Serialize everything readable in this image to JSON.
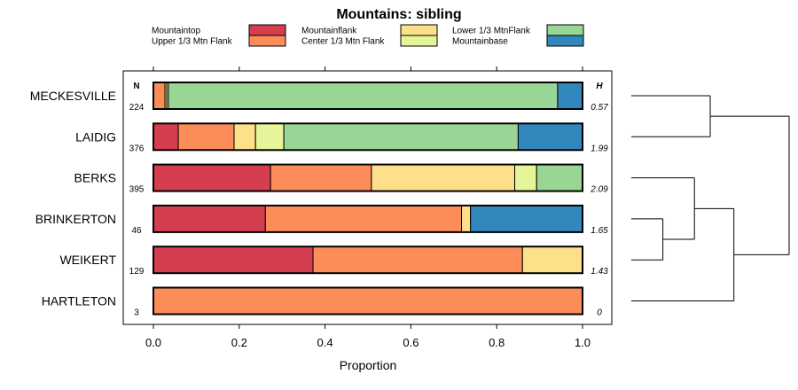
{
  "chart_data": {
    "type": "bar",
    "stacked": true,
    "horizontal": true,
    "title": "Mountains: sibling",
    "xlabel": "Proportion",
    "xlim": [
      0,
      1
    ],
    "xticks": [
      "0.0",
      "0.2",
      "0.4",
      "0.6",
      "0.8",
      "1.0"
    ],
    "n_header": "N",
    "h_header": "H",
    "legend": [
      {
        "name": "Mountaintop",
        "color": "#d53e4f"
      },
      {
        "name": "Upper 1/3 Mtn Flank",
        "color": "#fc8d59"
      },
      {
        "name": "Mountainflank",
        "color": "#fee08b"
      },
      {
        "name": "Center 1/3 Mtn Flank",
        "color": "#e6f598"
      },
      {
        "name": "Lower 1/3 MtnFlank",
        "color": "#99d594"
      },
      {
        "name": "Mountainbase",
        "color": "#3288bd"
      }
    ],
    "categories": [
      "MECKESVILLE",
      "LAIDIG",
      "BERKS",
      "BRINKERTON",
      "WEIKERT",
      "HARTLETON"
    ],
    "n": [
      "224",
      "376",
      "395",
      "46",
      "129",
      "3"
    ],
    "h": [
      "0.57",
      "1.99",
      "2.09",
      "1.65",
      "1.43",
      "0"
    ],
    "series": [
      {
        "name": "Mountaintop",
        "values": [
          0.0,
          0.058,
          0.273,
          0.261,
          0.372,
          0.0
        ]
      },
      {
        "name": "Upper 1/3 Mtn Flank",
        "values": [
          0.027,
          0.13,
          0.235,
          0.457,
          0.488,
          1.0
        ]
      },
      {
        "name": "Mountainflank",
        "values": [
          0.004,
          0.05,
          0.334,
          0.021,
          0.14,
          0.0
        ]
      },
      {
        "name": "Center 1/3 Mtn Flank",
        "values": [
          0.004,
          0.066,
          0.051,
          0.0,
          0.0,
          0.0
        ]
      },
      {
        "name": "Lower 1/3 MtnFlank",
        "values": [
          0.907,
          0.546,
          0.107,
          0.0,
          0.0,
          0.0
        ]
      },
      {
        "name": "Mountainbase",
        "values": [
          0.058,
          0.15,
          0.0,
          0.261,
          0.0,
          0.0
        ]
      }
    ],
    "dendrogram": {
      "type": "hierarchical-clustering",
      "leaf_order": [
        "MECKESVILLE",
        "LAIDIG",
        "BERKS",
        "BRINKERTON",
        "WEIKERT",
        "HARTLETON"
      ],
      "merges": [
        {
          "left": "BRINKERTON",
          "right": "WEIKERT",
          "height": 0.2
        },
        {
          "left": "m0",
          "right": "BERKS",
          "height": 0.4
        },
        {
          "left": "MECKESVILLE",
          "right": "LAIDIG",
          "height": 0.5
        },
        {
          "left": "m1",
          "right": "HARTLETON",
          "height": 0.65
        },
        {
          "left": "m2",
          "right": "m3",
          "height": 1.0
        }
      ]
    }
  }
}
